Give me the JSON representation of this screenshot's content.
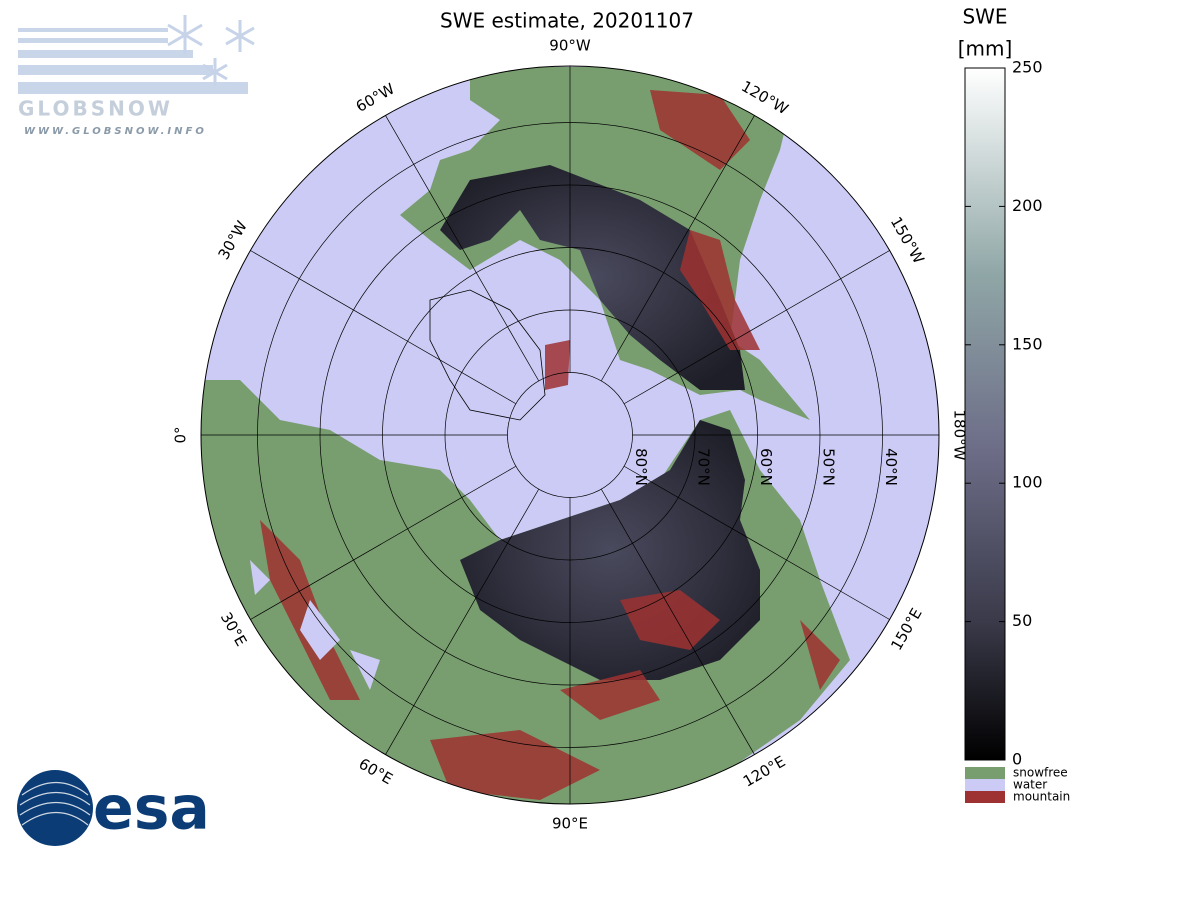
{
  "header": {
    "title": "SWE estimate, 20201107"
  },
  "map": {
    "meridians": [
      {
        "value": -90,
        "label": "90°W"
      },
      {
        "value": -60,
        "label": "60°W"
      },
      {
        "value": -30,
        "label": "30°W"
      },
      {
        "value": 0,
        "label": "0°"
      },
      {
        "value": 30,
        "label": "30°E"
      },
      {
        "value": 60,
        "label": "60°E"
      },
      {
        "value": 90,
        "label": "90°E"
      },
      {
        "value": 120,
        "label": "120°E"
      },
      {
        "value": 150,
        "label": "150°E"
      },
      {
        "value": 180,
        "label": "180°W"
      },
      {
        "value": -150,
        "label": "150°W"
      },
      {
        "value": -120,
        "label": "120°W"
      }
    ],
    "parallels": [
      {
        "value": 80,
        "label": "80°N"
      },
      {
        "value": 70,
        "label": "70°N"
      },
      {
        "value": 60,
        "label": "60°N"
      },
      {
        "value": 50,
        "label": "50°N"
      },
      {
        "value": 40,
        "label": "40°N"
      }
    ]
  },
  "colorbar": {
    "title": "SWE",
    "unit": "[mm]",
    "lim": [
      0,
      250
    ],
    "ticks": [
      0,
      50,
      100,
      150,
      200,
      250
    ]
  },
  "legend": [
    {
      "label": "snowfree",
      "color": "#789e6f"
    },
    {
      "label": "water",
      "color": "#cccbf5"
    },
    {
      "label": "mountain",
      "color": "#9e3131"
    }
  ],
  "logos": {
    "globsnow": "GLOBSNOW",
    "url": "WWW.GLOBSNOW.INFO",
    "esa": "esa"
  }
}
